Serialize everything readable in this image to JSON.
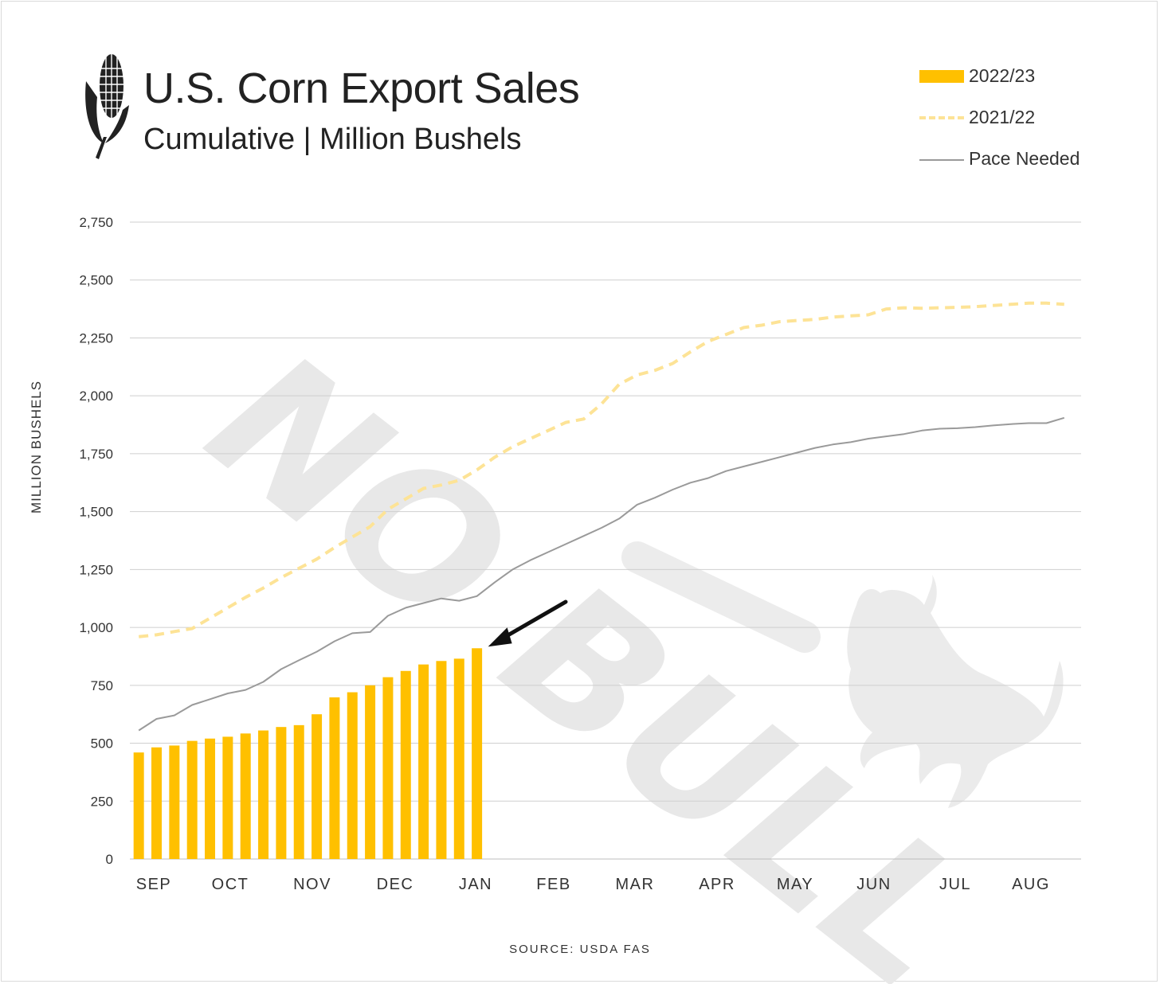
{
  "title": "U.S. Corn Export Sales",
  "subtitle": "Cumulative  |  Million Bushels",
  "source": "SOURCE: USDA FAS",
  "watermark": "NO BULL",
  "legend": [
    {
      "label": "2022/23",
      "style": "bar",
      "color": "#ffc000"
    },
    {
      "label": "2021/22",
      "style": "dashed",
      "color": "#fde396"
    },
    {
      "label": "Pace Needed",
      "style": "line",
      "color": "#9a9a9a"
    }
  ],
  "chart_data": {
    "type": "bar",
    "title": "U.S. Corn Export Sales",
    "subtitle": "Cumulative | Million Bushels",
    "ylabel": "MILLION BUSHELS",
    "ylim": [
      0,
      2750
    ],
    "yticks": [
      0,
      250,
      500,
      750,
      1000,
      1250,
      1500,
      1750,
      2000,
      2250,
      2500,
      2750
    ],
    "ytick_labels": [
      "0",
      "250",
      "500",
      "750",
      "1,000",
      "1,250",
      "1,500",
      "1,750",
      "2,000",
      "2,250",
      "2,500",
      "2,750"
    ],
    "month_labels": [
      "SEP",
      "OCT",
      "NOV",
      "DEC",
      "JAN",
      "FEB",
      "MAR",
      "APR",
      "MAY",
      "JUN",
      "JUL",
      "AUG"
    ],
    "week_count": 53,
    "grid": true,
    "legend_position": "top-right",
    "series": [
      {
        "name": "2022/23",
        "type": "bar",
        "color": "#ffc000",
        "values": [
          460,
          482,
          490,
          510,
          520,
          528,
          542,
          555,
          570,
          578,
          625,
          698,
          720,
          750,
          785,
          812,
          840,
          855,
          865,
          910
        ]
      },
      {
        "name": "2021/22",
        "type": "line",
        "style": "dashed",
        "color": "#fde396",
        "values": [
          960,
          968,
          982,
          995,
          1040,
          1085,
          1130,
          1170,
          1215,
          1255,
          1295,
          1345,
          1390,
          1435,
          1510,
          1555,
          1600,
          1615,
          1635,
          1680,
          1735,
          1780,
          1815,
          1850,
          1885,
          1900,
          1965,
          2050,
          2090,
          2110,
          2140,
          2190,
          2235,
          2265,
          2295,
          2305,
          2320,
          2325,
          2330,
          2340,
          2345,
          2350,
          2375,
          2380,
          2378,
          2380,
          2382,
          2385,
          2390,
          2395,
          2400,
          2400,
          2395
        ]
      },
      {
        "name": "Pace Needed",
        "type": "line",
        "style": "solid",
        "color": "#9a9a9a",
        "values": [
          555,
          605,
          620,
          665,
          690,
          715,
          730,
          765,
          820,
          858,
          895,
          940,
          975,
          980,
          1050,
          1085,
          1105,
          1125,
          1115,
          1135,
          1195,
          1250,
          1290,
          1325,
          1360,
          1395,
          1430,
          1470,
          1530,
          1560,
          1595,
          1625,
          1645,
          1675,
          1695,
          1715,
          1735,
          1755,
          1775,
          1790,
          1800,
          1815,
          1825,
          1835,
          1850,
          1858,
          1860,
          1865,
          1872,
          1878,
          1882,
          1882,
          1905
        ]
      }
    ]
  }
}
